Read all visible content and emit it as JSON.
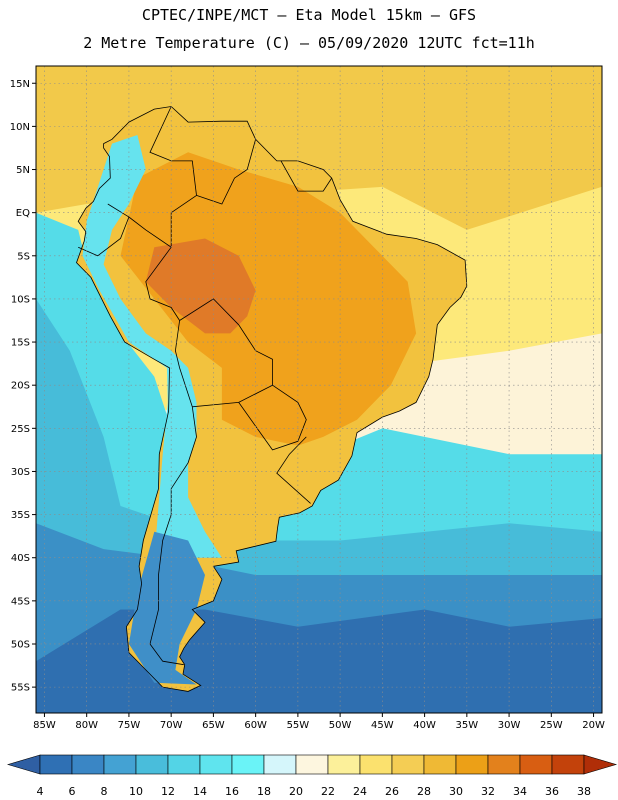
{
  "header": {
    "line1": "CPTEC/INPE/MCT –  Eta Model 15km – GFS",
    "line2": "2 Metre Temperature (C) – 05/09/2020 12UTC fct=11h"
  },
  "map": {
    "lon_range": [
      -86,
      -19
    ],
    "lat_range": [
      -58,
      17
    ],
    "lat_ticks": [
      {
        "v": 15,
        "label": "15N"
      },
      {
        "v": 10,
        "label": "10N"
      },
      {
        "v": 5,
        "label": "5N"
      },
      {
        "v": 0,
        "label": "EQ"
      },
      {
        "v": -5,
        "label": "5S"
      },
      {
        "v": -10,
        "label": "10S"
      },
      {
        "v": -15,
        "label": "15S"
      },
      {
        "v": -20,
        "label": "20S"
      },
      {
        "v": -25,
        "label": "25S"
      },
      {
        "v": -30,
        "label": "30S"
      },
      {
        "v": -35,
        "label": "35S"
      },
      {
        "v": -40,
        "label": "40S"
      },
      {
        "v": -45,
        "label": "45S"
      },
      {
        "v": -50,
        "label": "50S"
      },
      {
        "v": -55,
        "label": "55S"
      }
    ],
    "lon_ticks": [
      {
        "v": -85,
        "label": "85W"
      },
      {
        "v": -80,
        "label": "80W"
      },
      {
        "v": -75,
        "label": "75W"
      },
      {
        "v": -70,
        "label": "70W"
      },
      {
        "v": -65,
        "label": "65W"
      },
      {
        "v": -60,
        "label": "60W"
      },
      {
        "v": -55,
        "label": "55W"
      },
      {
        "v": -50,
        "label": "50W"
      },
      {
        "v": -45,
        "label": "45W"
      },
      {
        "v": -40,
        "label": "40W"
      },
      {
        "v": -35,
        "label": "35W"
      },
      {
        "v": -30,
        "label": "30W"
      },
      {
        "v": -25,
        "label": "25W"
      },
      {
        "v": -20,
        "label": "20W"
      }
    ],
    "colors": {
      "ocean_north": "#f2c94a",
      "ocean_tropical": "#fde97a",
      "ocean_warm_light": "#fdf3d8",
      "ocean_mid": "#55dce8",
      "ocean_cool": "#47bcd9",
      "ocean_cold": "#3b90c6",
      "ocean_coldest": "#2f6fb0",
      "land_hot": "#f0a21c",
      "land_very_hot": "#e07a28",
      "land_warm": "#f2c23e",
      "land_highland": "#66e3ee",
      "land_cold": "#3f8fc8",
      "border": "#000000",
      "grid": "#8c8c8c"
    }
  },
  "colorbar": {
    "labels": [
      "4",
      "6",
      "8",
      "10",
      "12",
      "14",
      "16",
      "18",
      "20",
      "22",
      "24",
      "26",
      "28",
      "30",
      "32",
      "34",
      "36",
      "38"
    ],
    "colors": [
      "#2f5fa3",
      "#2f70b4",
      "#3a86c5",
      "#44a2d3",
      "#49bddb",
      "#53d4e6",
      "#5fe4ee",
      "#6af3f7",
      "#d5f6fb",
      "#fdf6df",
      "#fcf09a",
      "#fbe16e",
      "#f4cd54",
      "#efb935",
      "#eca017",
      "#e3811c",
      "#d85e12",
      "#c3420b",
      "#b02e08"
    ]
  }
}
